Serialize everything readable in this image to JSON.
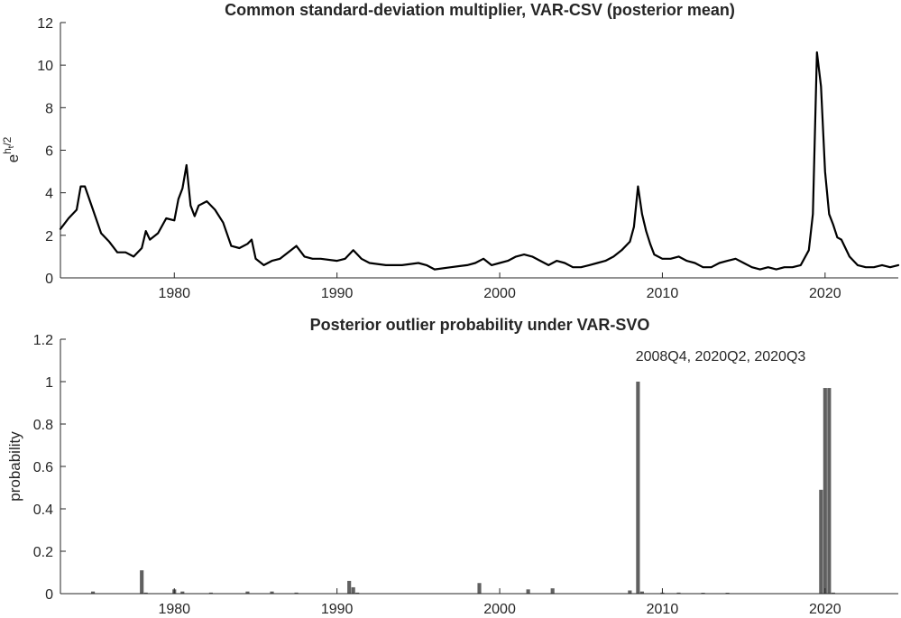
{
  "chart_data": [
    {
      "type": "line",
      "title": "Common standard-deviation multiplier, VAR-CSV (posterior mean)",
      "ylabel_base": "e",
      "ylabel_superscript": "h",
      "ylabel_subscript": "t",
      "ylabel_superscript_rest": "/2",
      "xlim": [
        1973.0,
        2024.5
      ],
      "ylim": [
        0,
        12
      ],
      "xticks": [
        1980,
        1990,
        2000,
        2010,
        2020
      ],
      "yticks": [
        0,
        2,
        4,
        6,
        8,
        10,
        12
      ],
      "grid": false,
      "line_color": "#000000",
      "series": [
        {
          "x": [
            1973.0,
            1973.5,
            1974.0,
            1974.25,
            1974.5,
            1975.0,
            1975.5,
            1976.0,
            1976.5,
            1977.0,
            1977.5,
            1978.0,
            1978.25,
            1978.5,
            1979.0,
            1979.5,
            1980.0,
            1980.25,
            1980.5,
            1980.75,
            1981.0,
            1981.25,
            1981.5,
            1982.0,
            1982.5,
            1983.0,
            1983.5,
            1984.0,
            1984.5,
            1984.75,
            1985.0,
            1985.5,
            1986.0,
            1986.5,
            1987.0,
            1987.5,
            1988.0,
            1988.5,
            1989.0,
            1990.0,
            1990.5,
            1991.0,
            1991.5,
            1992.0,
            1993.0,
            1994.0,
            1995.0,
            1995.5,
            1996.0,
            1997.0,
            1998.0,
            1998.5,
            1999.0,
            1999.5,
            2000.0,
            2000.5,
            2001.0,
            2001.5,
            2002.0,
            2002.5,
            2003.0,
            2003.5,
            2004.0,
            2004.5,
            2005.0,
            2005.5,
            2006.0,
            2006.5,
            2007.0,
            2007.5,
            2008.0,
            2008.25,
            2008.5,
            2008.75,
            2009.0,
            2009.25,
            2009.5,
            2010.0,
            2010.5,
            2011.0,
            2011.5,
            2012.0,
            2012.5,
            2013.0,
            2013.5,
            2014.0,
            2014.5,
            2015.0,
            2015.5,
            2016.0,
            2016.5,
            2017.0,
            2017.5,
            2018.0,
            2018.5,
            2019.0,
            2019.25,
            2019.5,
            2019.75,
            2020.0,
            2020.25,
            2020.5,
            2020.75,
            2021.0,
            2021.25,
            2021.5,
            2021.75,
            2022.0,
            2022.5,
            2023.0,
            2023.5,
            2024.0,
            2024.5
          ],
          "y": [
            2.3,
            2.8,
            3.2,
            4.3,
            4.3,
            3.2,
            2.1,
            1.7,
            1.2,
            1.2,
            1.0,
            1.4,
            2.2,
            1.8,
            2.1,
            2.8,
            2.7,
            3.7,
            4.2,
            5.3,
            3.4,
            2.9,
            3.4,
            3.6,
            3.2,
            2.6,
            1.5,
            1.4,
            1.6,
            1.8,
            0.9,
            0.6,
            0.8,
            0.9,
            1.2,
            1.5,
            1.0,
            0.9,
            0.9,
            0.8,
            0.9,
            1.3,
            0.9,
            0.7,
            0.6,
            0.6,
            0.7,
            0.6,
            0.4,
            0.5,
            0.6,
            0.7,
            0.9,
            0.6,
            0.7,
            0.8,
            1.0,
            1.1,
            1.0,
            0.8,
            0.6,
            0.8,
            0.7,
            0.5,
            0.5,
            0.6,
            0.7,
            0.8,
            1.0,
            1.3,
            1.7,
            2.4,
            4.3,
            3.0,
            2.2,
            1.6,
            1.1,
            0.9,
            0.9,
            1.0,
            0.8,
            0.7,
            0.5,
            0.5,
            0.7,
            0.8,
            0.9,
            0.7,
            0.5,
            0.4,
            0.5,
            0.4,
            0.5,
            0.5,
            0.6,
            1.3,
            3.0,
            10.6,
            9.0,
            5.0,
            3.0,
            2.5,
            1.9,
            1.8,
            1.4,
            1.0,
            0.8,
            0.6,
            0.5,
            0.5,
            0.6,
            0.5,
            0.6
          ]
        }
      ]
    },
    {
      "type": "bar",
      "title": "Posterior outlier probability under VAR-SVO",
      "ylabel": "probability",
      "xlim": [
        1973.0,
        2024.5
      ],
      "ylim": [
        0,
        1.2
      ],
      "xticks": [
        1980,
        1990,
        2000,
        2010,
        2020
      ],
      "yticks": [
        0,
        0.2,
        0.4,
        0.6,
        0.8,
        1,
        1.2
      ],
      "ytick_labels": [
        "0",
        "0.2",
        "0.4",
        "0.6",
        "0.8",
        "1",
        "1.2"
      ],
      "grid": false,
      "bar_color": "#606060",
      "annotation": "2008Q4, 2020Q2, 2020Q3",
      "bar_width_years": 0.23,
      "x": [
        1975.0,
        1978.0,
        1978.25,
        1980.0,
        1980.5,
        1982.25,
        1984.5,
        1986.0,
        1987.5,
        1990.75,
        1991.0,
        1991.25,
        1998.75,
        2001.75,
        2003.25,
        2008.0,
        2008.5,
        2008.75,
        2010.0,
        2011.0,
        2012.5,
        2014.0,
        2019.75,
        2020.0,
        2020.25,
        2020.5
      ],
      "values": [
        0.01,
        0.11,
        0.005,
        0.02,
        0.01,
        0.005,
        0.01,
        0.01,
        0.005,
        0.06,
        0.03,
        0.005,
        0.05,
        0.02,
        0.025,
        0.015,
        1.0,
        0.01,
        0.005,
        0.005,
        0.003,
        0.003,
        0.49,
        0.97,
        0.97,
        0.005
      ]
    }
  ]
}
